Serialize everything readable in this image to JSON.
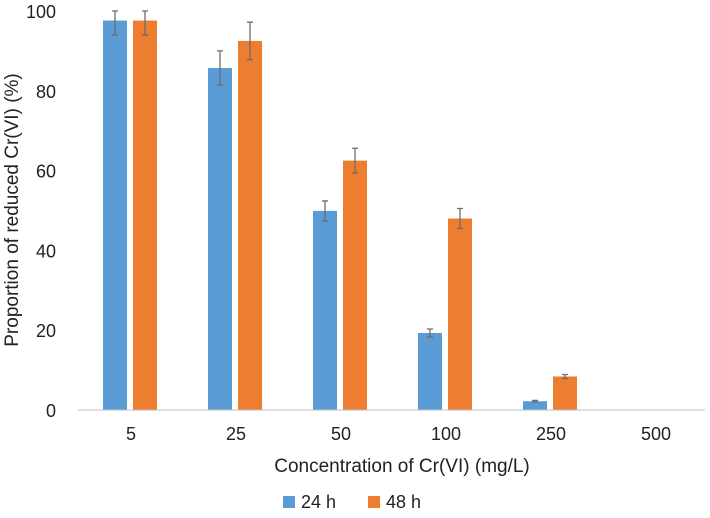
{
  "chart_data": {
    "type": "bar",
    "title": "",
    "xlabel": "Concentration of Cr(VI) (mg/L)",
    "ylabel": "Proportion of reduced Cr(VI) (%)",
    "ylim": [
      0,
      100
    ],
    "yticks": [
      "0",
      "20",
      "40",
      "60",
      "80",
      "100"
    ],
    "categories": [
      "5",
      "25",
      "50",
      "100",
      "250",
      "500"
    ],
    "series": [
      {
        "name": "24 h",
        "color": "#5b9bd5",
        "values": [
          97.6,
          85.7,
          49.9,
          19.3,
          2.2,
          0
        ],
        "errors": [
          3.6,
          4.3,
          2.5,
          1.0,
          0.2,
          0
        ]
      },
      {
        "name": "48 h",
        "color": "#ed7d31",
        "values": [
          97.6,
          92.5,
          62.5,
          48.0,
          8.4,
          0
        ],
        "errors": [
          3.6,
          4.7,
          3.1,
          2.5,
          0.5,
          0
        ]
      }
    ],
    "legend": "bottom"
  }
}
